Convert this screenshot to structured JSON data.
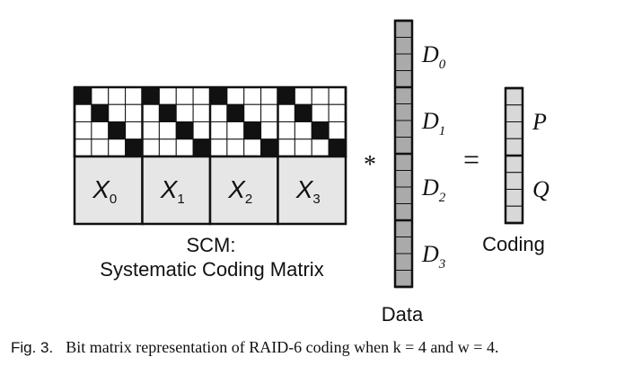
{
  "scm": {
    "blocks": [
      "X",
      "X",
      "X",
      "X"
    ],
    "block_subscripts": [
      "0",
      "1",
      "2",
      "3"
    ],
    "label_line1": "SCM:",
    "label_line2": "Systematic Coding Matrix"
  },
  "operator_multiply": "*",
  "operator_equals": "=",
  "data_vector": {
    "label": "Data",
    "entries": [
      "D",
      "D",
      "D",
      "D"
    ],
    "entry_subscripts": [
      "0",
      "1",
      "2",
      "3"
    ]
  },
  "coding_vector": {
    "label": "Coding",
    "entries": [
      "P",
      "Q"
    ]
  },
  "caption": {
    "fig_label": "Fig. 3.",
    "text": "Bit matrix representation of RAID-6 coding when k = 4 and w = 4."
  },
  "colors": {
    "grid_fill": "#ffffff",
    "bit_on": "#111111",
    "block_fill": "#e6e6e6",
    "data_cell": "#aaaaaa",
    "coding_cell": "#d8d8d8",
    "stroke": "#111111"
  }
}
